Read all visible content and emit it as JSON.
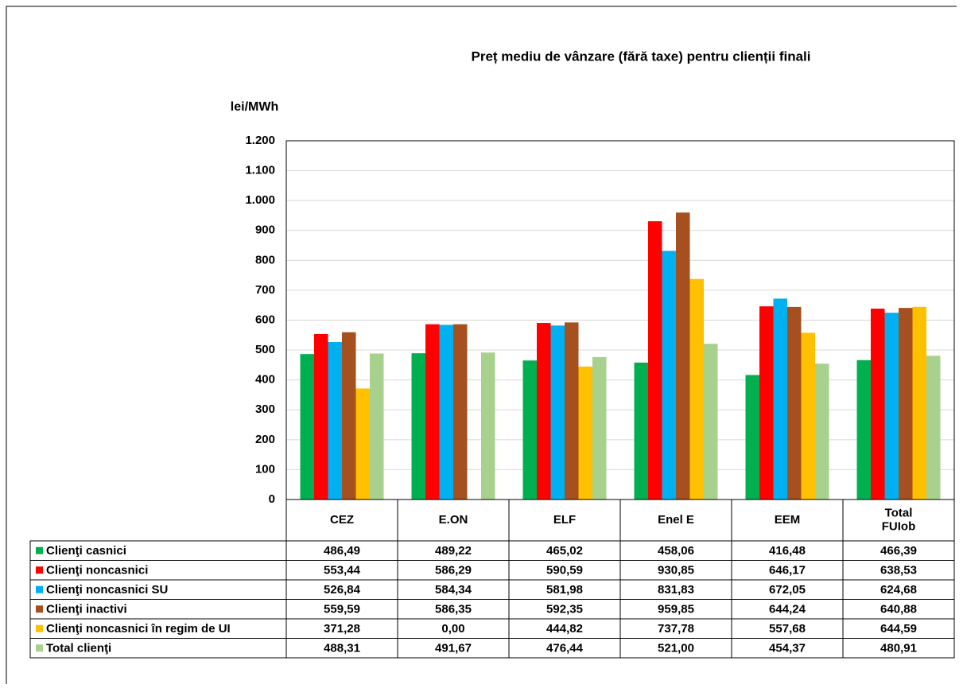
{
  "chart_data": {
    "type": "bar",
    "title": "Preț mediu de vânzare (fără taxe) pentru clienții finali",
    "y_label": "lei/MWh",
    "categories": [
      "CEZ",
      "E.ON",
      "ELF",
      "Enel E",
      "EEM",
      "Total FUIob"
    ],
    "series": [
      {
        "name": "Clienţi casnici",
        "color": "#00b050",
        "values": [
          486.49,
          489.22,
          465.02,
          458.06,
          416.48,
          466.39
        ],
        "value_labels": [
          "486,49",
          "489,22",
          "465,02",
          "458,06",
          "416,48",
          "466,39"
        ]
      },
      {
        "name": "Clienţi noncasnici",
        "color": "#ff0000",
        "values": [
          553.44,
          586.29,
          590.59,
          930.85,
          646.17,
          638.53
        ],
        "value_labels": [
          "553,44",
          "586,29",
          "590,59",
          "930,85",
          "646,17",
          "638,53"
        ]
      },
      {
        "name": "Clienţi noncasnici SU",
        "color": "#00b0f0",
        "values": [
          526.84,
          584.34,
          581.98,
          831.83,
          672.05,
          624.68
        ],
        "value_labels": [
          "526,84",
          "584,34",
          "581,98",
          "831,83",
          "672,05",
          "624,68"
        ]
      },
      {
        "name": "Clienţi inactivi",
        "color": "#a5501e",
        "values": [
          559.59,
          586.35,
          592.35,
          959.85,
          644.24,
          640.88
        ],
        "value_labels": [
          "559,59",
          "586,35",
          "592,35",
          "959,85",
          "644,24",
          "640,88"
        ]
      },
      {
        "name": "Clienţi noncasnici în regim de UI",
        "color": "#ffc000",
        "values": [
          371.28,
          0,
          444.82,
          737.78,
          557.68,
          644.59
        ],
        "value_labels": [
          "371,28",
          "0,00",
          "444,82",
          "737,78",
          "557,68",
          "644,59"
        ]
      },
      {
        "name": "Total clienţi",
        "color": "#a9d18e",
        "values": [
          488.31,
          491.67,
          476.44,
          521.0,
          454.37,
          480.91
        ],
        "value_labels": [
          "488,31",
          "491,67",
          "476,44",
          "521,00",
          "454,37",
          "480,91"
        ]
      }
    ],
    "ylim": [
      0,
      1200
    ],
    "yticks": [
      0,
      100,
      200,
      300,
      400,
      500,
      600,
      700,
      800,
      900,
      {
        "value": 1000,
        "label": "1.000"
      },
      {
        "value": 1100,
        "label": "1.100"
      },
      {
        "value": 1200,
        "label": "1.200"
      }
    ],
    "grid": true
  }
}
